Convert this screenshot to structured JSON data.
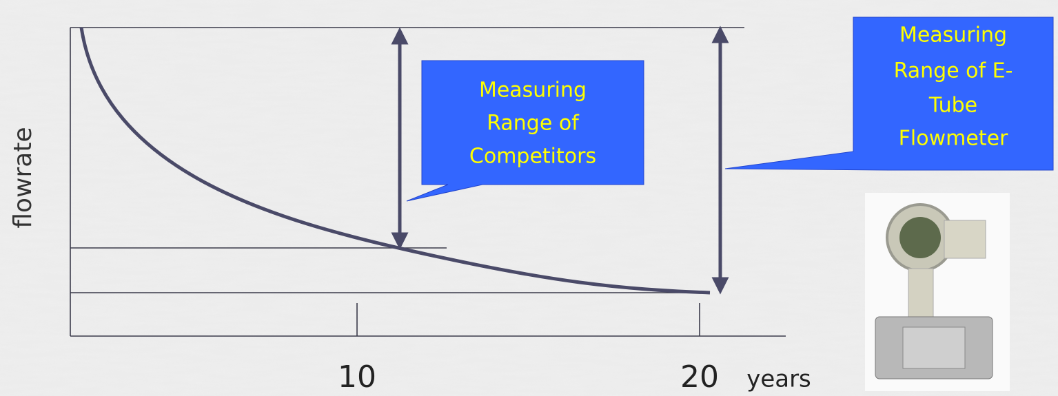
{
  "axis": {
    "y_label": "flowrate",
    "x_ticks": [
      "10",
      "20"
    ],
    "x_unit": "years"
  },
  "callouts": [
    {
      "lines": [
        "Measuring",
        "Range of",
        "Competitors"
      ]
    },
    {
      "lines": [
        "Measuring",
        "Range of E-",
        "Tube",
        "Flowmeter"
      ]
    }
  ]
}
